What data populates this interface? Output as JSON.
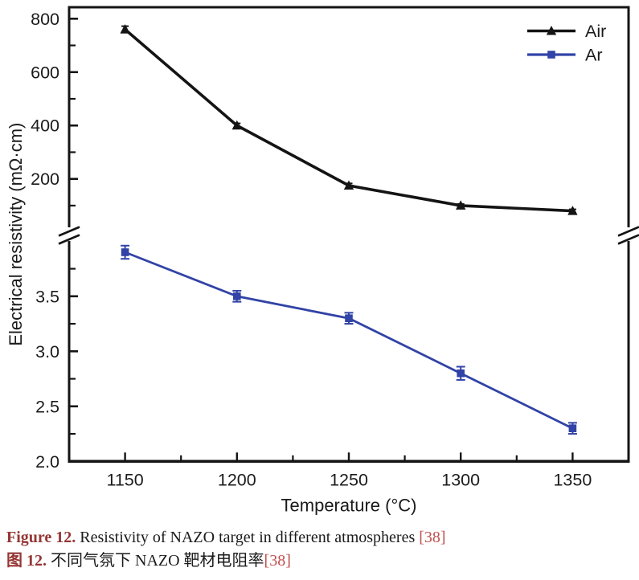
{
  "chart_data": {
    "type": "line",
    "title": "",
    "xlabel": "Temperature (°C)",
    "ylabel": "Electrical resistivity (mΩ·cm)",
    "x": [
      1150,
      1200,
      1250,
      1300,
      1350
    ],
    "xlim": [
      1125,
      1375
    ],
    "x_major_ticks": [
      1150,
      1200,
      1250,
      1300,
      1350
    ],
    "x_minor_ticks": [
      1175,
      1225,
      1275,
      1325
    ],
    "axis_break": true,
    "upper_segment": {
      "unit": "mΩ·cm",
      "major_ticks": [
        800,
        600,
        400,
        200
      ],
      "major_tick_labels": [
        "800",
        "600",
        "400",
        "200"
      ],
      "minor_ticks": [
        700,
        500,
        300,
        100
      ]
    },
    "lower_segment": {
      "unit": "mΩ·cm",
      "major_ticks": [
        3.5,
        3.0,
        2.5,
        2.0
      ],
      "major_tick_labels": [
        "3.5",
        "3.0",
        "2.5",
        "2.0"
      ],
      "minor_ticks": [
        3.75,
        3.25,
        2.75,
        2.25
      ]
    },
    "series": [
      {
        "name": "Air",
        "axis": "upper",
        "color": "#141414",
        "marker": "triangle",
        "values": [
          760,
          400,
          175,
          100,
          80
        ],
        "errors": [
          12,
          8,
          8,
          6,
          6
        ]
      },
      {
        "name": "Ar",
        "axis": "lower",
        "color": "#3143a6",
        "marker": "square",
        "values": [
          3.9,
          3.5,
          3.3,
          2.8,
          2.3
        ],
        "errors": [
          0.06,
          0.05,
          0.05,
          0.06,
          0.05
        ]
      }
    ],
    "legend": {
      "position": "top-right",
      "entries": [
        "Air",
        "Ar"
      ]
    },
    "grid": false
  },
  "colors": {
    "axis": "#141414",
    "tick_text": "#1b1b1b",
    "air_line": "#141414",
    "ar_line": "#3143a6",
    "caption_label": "#943634",
    "caption_ref": "#c0504d"
  },
  "caption": {
    "en_label": "Figure 12.",
    "en_text": "Resistivity of NAZO target in different atmospheres",
    "en_ref": "[38]",
    "zh_label": "图 12.",
    "zh_text": "不同气氛下 NAZO 靶材电阻率",
    "zh_ref": "[38]"
  }
}
